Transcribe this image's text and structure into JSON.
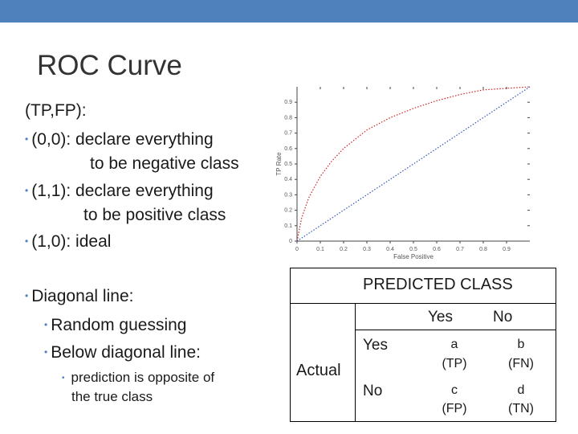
{
  "slide": {
    "title": "ROC Curve",
    "intro": "(TP,FP):",
    "bullet1_line1": "(0,0): declare everything",
    "bullet1_line2": "to be negative class",
    "bullet2_line1": "(1,1): declare everything",
    "bullet2_line2": "to be positive class",
    "bullet3": "(1,0): ideal",
    "diag_bullet": "Diagonal line:",
    "diag_sub1": "Random guessing",
    "diag_sub2": "Below diagonal line:",
    "diag_sub3_line1": "prediction is opposite of",
    "diag_sub3_line2": "the true class"
  },
  "chart_data": {
    "type": "line",
    "xlabel": "False Positive",
    "ylabel": "TP Rate",
    "xlim": [
      0,
      1
    ],
    "ylim": [
      0,
      1
    ],
    "x_ticks": [
      "0",
      "0.1",
      "0.2",
      "0.3",
      "0.4",
      "0.5",
      "0.6",
      "0.7",
      "0.8",
      "0.9"
    ],
    "y_ticks": [
      "0",
      "0.1",
      "0.2",
      "0.3",
      "0.4",
      "0.5",
      "0.6",
      "0.7",
      "0.8",
      "0.9"
    ],
    "series": [
      {
        "x": [
          0,
          0.02,
          0.05,
          0.1,
          0.15,
          0.2,
          0.3,
          0.4,
          0.5,
          0.6,
          0.7,
          0.8,
          0.9,
          1.0
        ],
        "y": [
          0,
          0.15,
          0.28,
          0.42,
          0.52,
          0.6,
          0.72,
          0.8,
          0.86,
          0.91,
          0.95,
          0.98,
          0.99,
          1.0
        ],
        "color": "#cc2222",
        "style": "dotted"
      },
      {
        "x": [
          0,
          1
        ],
        "y": [
          0,
          1
        ],
        "color": "#3355bb",
        "style": "dotted"
      }
    ]
  },
  "confusion": {
    "predicted_header": "PREDICTED CLASS",
    "actual_label": "Actual",
    "col_yes": "Yes",
    "col_no": "No",
    "row_yes": "Yes",
    "row_no": "No",
    "tp_a": "a",
    "tp_label": "(TP)",
    "fn_b": "b",
    "fn_label": "(FN)",
    "fp_c": "c",
    "fp_label": "(FP)",
    "tn_d": "d",
    "tn_label": "(TN)"
  },
  "colors": {
    "accent": "#4f81bd",
    "roc": "#cc2222",
    "diagonal": "#3355bb"
  }
}
